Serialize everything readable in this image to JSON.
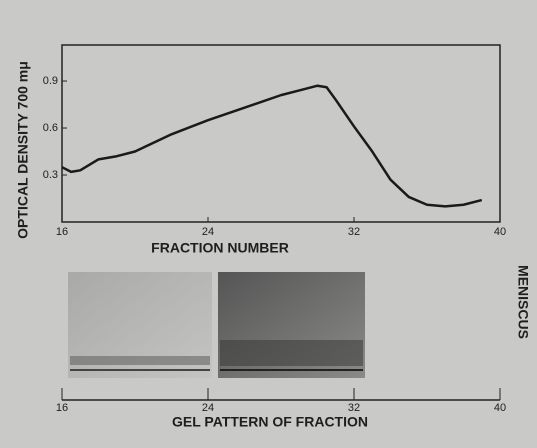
{
  "chart_data": [
    {
      "type": "line",
      "xlabel": "FRACTION NUMBER",
      "ylabel": "OPTICAL DENSITY 700 mμ",
      "x": [
        16,
        16.5,
        17,
        18,
        19,
        20,
        22,
        24,
        26,
        28,
        29,
        30,
        30.5,
        31,
        32,
        33,
        34,
        35,
        36,
        37,
        38,
        39
      ],
      "values": [
        0.35,
        0.32,
        0.33,
        0.4,
        0.42,
        0.45,
        0.56,
        0.65,
        0.73,
        0.81,
        0.84,
        0.87,
        0.86,
        0.78,
        0.61,
        0.45,
        0.27,
        0.16,
        0.11,
        0.1,
        0.11,
        0.14
      ],
      "color": "#1a1a1a",
      "xlim": [
        16,
        40
      ],
      "xticks": [
        16,
        24,
        32,
        40
      ],
      "ylim": [
        0,
        1.13
      ],
      "yticks": [
        0.3,
        0.6,
        0.9
      ]
    },
    {
      "type": "gel",
      "xlabel": "GEL PATTERN OF FRACTION",
      "annotation": "MENISCUS",
      "xlim": [
        16,
        40
      ],
      "xticks": [
        16,
        24,
        32,
        40
      ]
    }
  ]
}
